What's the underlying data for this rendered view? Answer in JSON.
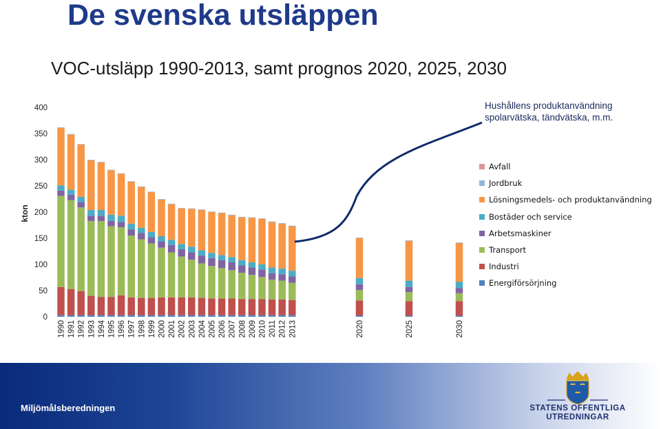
{
  "header": {
    "title": "De svenska utsläppen",
    "chart_title": "VOC-utsläpp 1990-2013, samt prognos 2020, 2025, 2030"
  },
  "annotation": {
    "line1": "Hushållens produktanvändning",
    "line2": "spolarvätska, tändvätska, m.m."
  },
  "footer": {
    "left_label": "Miljömålsberedningen",
    "logo_line1": "STATENS OFFENTLIGA",
    "logo_line2": "UTREDNINGAR",
    "logo_icon": "three-crowns-shield-icon"
  },
  "colors": {
    "Energiförsörjning": "#4f81bd",
    "Industri": "#c0504d",
    "Transport": "#9bbb59",
    "Arbetsmaskiner": "#8064a2",
    "Bostäder och service": "#4bacc6",
    "Lösningsmedels- och produktanvändning": "#f79646",
    "Jordbruk": "#95b3d7",
    "Avfall": "#d99694",
    "title": "#1f3a8a",
    "arrow": "#0f2a6b"
  },
  "chart_data": {
    "type": "bar",
    "stacked": true,
    "title": "VOC-utsläpp 1990-2013, samt prognos 2020, 2025, 2030",
    "ylabel": "kton",
    "ylim": [
      0,
      400
    ],
    "yticks": [
      0,
      50,
      100,
      150,
      200,
      250,
      300,
      350,
      400
    ],
    "grid": false,
    "legend_position": "right",
    "categories": [
      "1990",
      "1991",
      "1992",
      "1993",
      "1994",
      "1995",
      "1996",
      "1997",
      "1998",
      "1999",
      "2000",
      "2001",
      "2002",
      "2003",
      "2004",
      "2005",
      "2006",
      "2007",
      "2008",
      "2009",
      "2010",
      "2011",
      "2012",
      "2013",
      "2020",
      "2025",
      "2030"
    ],
    "series": [
      {
        "name": "Energiförsörjning",
        "values": [
          3,
          3,
          3,
          3,
          3,
          3,
          3,
          3,
          3,
          3,
          3,
          3,
          3,
          3,
          3,
          3,
          3,
          3,
          3,
          3,
          3,
          3,
          3,
          3,
          2,
          2,
          2
        ]
      },
      {
        "name": "Industri",
        "values": [
          54,
          50,
          46,
          37,
          35,
          35,
          38,
          34,
          33,
          33,
          34,
          34,
          34,
          34,
          33,
          32,
          32,
          32,
          31,
          31,
          31,
          30,
          30,
          29,
          29,
          28,
          28
        ]
      },
      {
        "name": "Transport",
        "values": [
          174,
          170,
          160,
          143,
          145,
          135,
          130,
          118,
          112,
          104,
          95,
          86,
          78,
          72,
          66,
          62,
          58,
          54,
          50,
          46,
          42,
          38,
          36,
          33,
          20,
          17,
          15
        ]
      },
      {
        "name": "Arbetsmaskiner",
        "values": [
          10,
          10,
          10,
          10,
          10,
          10,
          10,
          12,
          12,
          12,
          12,
          14,
          14,
          14,
          15,
          15,
          15,
          15,
          14,
          14,
          14,
          12,
          12,
          12,
          11,
          10,
          10
        ]
      },
      {
        "name": "Bostäder och service",
        "values": [
          10,
          10,
          10,
          11,
          11,
          12,
          12,
          11,
          10,
          10,
          10,
          10,
          10,
          11,
          10,
          10,
          10,
          10,
          10,
          10,
          10,
          11,
          11,
          11,
          12,
          12,
          12
        ]
      },
      {
        "name": "Lösningsmedels- och produktanvändning",
        "values": [
          110,
          105,
          100,
          95,
          91,
          85,
          80,
          80,
          78,
          76,
          70,
          68,
          68,
          72,
          77,
          78,
          80,
          80,
          82,
          85,
          87,
          87,
          86,
          85,
          76,
          76,
          74
        ]
      },
      {
        "name": "Jordbruk",
        "values": [
          1,
          1,
          1,
          1,
          1,
          1,
          1,
          1,
          1,
          1,
          1,
          1,
          1,
          1,
          1,
          1,
          1,
          1,
          1,
          1,
          1,
          1,
          1,
          1,
          1,
          1,
          1
        ]
      },
      {
        "name": "Avfall",
        "values": [
          0,
          0,
          0,
          0,
          0,
          0,
          0,
          0,
          0,
          0,
          0,
          0,
          0,
          0,
          0,
          0,
          0,
          0,
          0,
          0,
          0,
          0,
          0,
          0,
          0,
          0,
          0
        ]
      }
    ],
    "legend_order": [
      "Avfall",
      "Jordbruk",
      "Lösningsmedels- och produktanvändning",
      "Bostäder och service",
      "Arbetsmaskiner",
      "Transport",
      "Industri",
      "Energiförsörjning"
    ]
  }
}
